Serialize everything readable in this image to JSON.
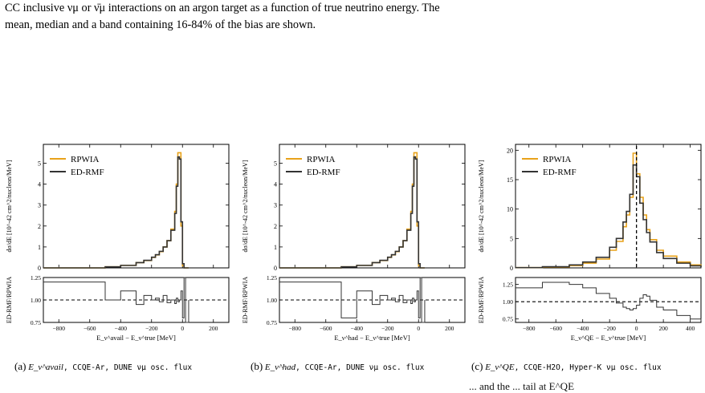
{
  "caption": {
    "line1": "CC inclusive νμ or ν̄μ interactions on an argon target as a function of true neutrino energy. The",
    "line2": "mean, median and a band containing 16-84% of the bias are shown.",
    "bottom_fragment": "... and the ... tail at E^QE"
  },
  "colors": {
    "rpwia": "#e8a21a",
    "edrmf": "#333333"
  },
  "chart_data": [
    {
      "type": "line",
      "panel_id": "a",
      "xlabel": "E_ν^avail − E_ν^true [MeV]",
      "ylabel_top": "dσ/dE [10^-42 cm^2/nucleon/MeV]",
      "ylabel_bottom": "ED-RMF/RPWIA",
      "xlim": [
        -900,
        300
      ],
      "ylim_top": [
        0,
        5.9
      ],
      "ylim_bottom": [
        0.75,
        1.25
      ],
      "x_ticks": [
        "−800",
        "−600",
        "−400",
        "−200",
        "0",
        "200"
      ],
      "x_tick_values": [
        -800,
        -600,
        -400,
        -200,
        0,
        200
      ],
      "y_ticks_top": [
        "0",
        "1",
        "2",
        "3",
        "4",
        "5"
      ],
      "y_tick_values_top": [
        0,
        1,
        2,
        3,
        4,
        5
      ],
      "y_ticks_bottom": [
        "0.75",
        "1.00",
        "1.25"
      ],
      "legend": [
        "RPWIA",
        "ED-RMF"
      ],
      "x": [
        -900,
        -500,
        -400,
        -300,
        -250,
        -200,
        -175,
        -150,
        -125,
        -100,
        -75,
        -50,
        -40,
        -30,
        -20,
        -10,
        0,
        10,
        20,
        40
      ],
      "series": [
        {
          "name": "RPWIA",
          "values": [
            0.0,
            0.05,
            0.12,
            0.25,
            0.35,
            0.5,
            0.62,
            0.78,
            1.0,
            1.3,
            1.85,
            2.7,
            4.0,
            5.5,
            5.5,
            2.0,
            0.1,
            0.0,
            0.0,
            0.0
          ]
        },
        {
          "name": "ED-RMF",
          "values": [
            0.0,
            0.05,
            0.12,
            0.25,
            0.36,
            0.51,
            0.63,
            0.79,
            1.0,
            1.3,
            1.8,
            2.6,
            3.9,
            5.3,
            5.2,
            2.2,
            0.2,
            0.0,
            0.0,
            0.0
          ]
        }
      ],
      "ratio_ref": 1.0,
      "ratio": [
        1.2,
        1.0,
        1.1,
        0.95,
        1.05,
        1.0,
        1.02,
        0.98,
        1.05,
        0.97,
        1.0,
        0.96,
        1.02,
        0.98,
        1.0,
        1.1,
        0.8,
        1.3,
        0.75,
        1.0
      ],
      "subcaption": {
        "tag": "(a)",
        "symbol": "E_ν^avail",
        "rest": ", CCQE-Ar, DUNE νμ osc. flux"
      }
    },
    {
      "type": "line",
      "panel_id": "b",
      "xlabel": "E_ν^had − E_ν^true [MeV]",
      "ylabel_top": "dσ/dE [10^-42 cm^2/nucleon/MeV]",
      "ylabel_bottom": "ED-RMF/RPWIA",
      "xlim": [
        -900,
        300
      ],
      "ylim_top": [
        0,
        5.9
      ],
      "ylim_bottom": [
        0.75,
        1.25
      ],
      "x_ticks": [
        "−800",
        "−600",
        "−400",
        "−200",
        "0",
        "200"
      ],
      "x_tick_values": [
        -800,
        -600,
        -400,
        -200,
        0,
        200
      ],
      "y_ticks_top": [
        "0",
        "1",
        "2",
        "3",
        "4",
        "5"
      ],
      "y_tick_values_top": [
        0,
        1,
        2,
        3,
        4,
        5
      ],
      "y_ticks_bottom": [
        "0.75",
        "1.00",
        "1.25"
      ],
      "legend": [
        "RPWIA",
        "ED-RMF"
      ],
      "x": [
        -900,
        -500,
        -400,
        -300,
        -250,
        -200,
        -175,
        -150,
        -125,
        -100,
        -75,
        -50,
        -40,
        -30,
        -20,
        -10,
        0,
        10,
        20,
        40
      ],
      "series": [
        {
          "name": "RPWIA",
          "values": [
            0.0,
            0.05,
            0.12,
            0.25,
            0.35,
            0.5,
            0.62,
            0.78,
            1.0,
            1.3,
            1.85,
            2.7,
            4.0,
            5.5,
            5.5,
            2.0,
            0.1,
            0.0,
            0.0,
            0.0
          ]
        },
        {
          "name": "ED-RMF",
          "values": [
            0.0,
            0.05,
            0.12,
            0.25,
            0.36,
            0.51,
            0.63,
            0.79,
            1.0,
            1.3,
            1.8,
            2.6,
            3.9,
            5.3,
            5.2,
            2.2,
            0.2,
            0.0,
            0.0,
            0.0
          ]
        }
      ],
      "ratio_ref": 1.0,
      "ratio": [
        1.2,
        0.8,
        1.1,
        0.95,
        1.05,
        1.0,
        1.02,
        0.98,
        1.05,
        0.97,
        1.0,
        0.96,
        1.02,
        0.98,
        1.0,
        1.1,
        0.8,
        1.3,
        0.75,
        1.0
      ],
      "subcaption": {
        "tag": "(b)",
        "symbol": "E_ν^had",
        "rest": ", CCQE-Ar, DUNE νμ osc. flux"
      }
    },
    {
      "type": "line",
      "panel_id": "c",
      "xlabel": "E_ν^QE − E_ν^true [MeV]",
      "ylabel_top": "dσ/dE [10^-42 cm^2/nucleon/MeV]",
      "ylabel_bottom": "ED-RMF/RPWIA",
      "xlim": [
        -900,
        480
      ],
      "ylim_top": [
        0,
        21
      ],
      "ylim_bottom": [
        0.7,
        1.35
      ],
      "x_ticks": [
        "−800",
        "−600",
        "−400",
        "−200",
        "0",
        "200",
        "400"
      ],
      "x_tick_values": [
        -800,
        -600,
        -400,
        -200,
        0,
        200,
        400
      ],
      "y_ticks_top": [
        "0",
        "5",
        "10",
        "15",
        "20"
      ],
      "y_tick_values_top": [
        0,
        5,
        10,
        15,
        20
      ],
      "y_ticks_bottom": [
        "0.75",
        "1.00",
        "1.25"
      ],
      "legend": [
        "RPWIA",
        "ED-RMF"
      ],
      "x": [
        -900,
        -700,
        -500,
        -400,
        -300,
        -200,
        -150,
        -100,
        -75,
        -50,
        -25,
        0,
        25,
        50,
        75,
        100,
        150,
        200,
        300,
        400,
        480
      ],
      "series": [
        {
          "name": "RPWIA",
          "values": [
            0.05,
            0.15,
            0.4,
            0.8,
            1.5,
            3.0,
            4.5,
            7.0,
            9.0,
            12.0,
            19.5,
            16.0,
            12.0,
            9.0,
            6.5,
            4.8,
            3.0,
            2.0,
            1.0,
            0.5,
            0.2
          ]
        },
        {
          "name": "ED-RMF",
          "values": [
            0.05,
            0.2,
            0.5,
            1.0,
            1.8,
            3.5,
            5.0,
            7.8,
            9.6,
            12.5,
            17.5,
            15.5,
            11.0,
            8.2,
            6.0,
            4.4,
            2.6,
            1.6,
            0.8,
            0.35,
            0.15
          ]
        }
      ],
      "ratio_ref": 1.0,
      "ratio": [
        1.2,
        1.28,
        1.25,
        1.2,
        1.12,
        1.05,
        0.98,
        0.92,
        0.9,
        0.88,
        0.9,
        0.95,
        1.05,
        1.1,
        1.08,
        1.02,
        0.92,
        0.88,
        0.8,
        0.75,
        0.72
      ],
      "subcaption": {
        "tag": "(c)",
        "symbol": "E_ν^QE",
        "rest": ", CCQE-H2O, Hyper-K νμ osc. flux"
      }
    }
  ]
}
